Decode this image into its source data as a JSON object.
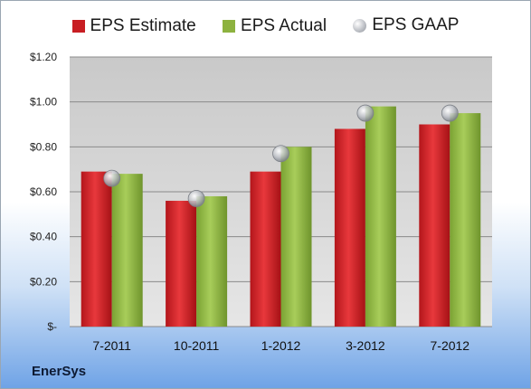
{
  "chart_data": {
    "type": "bar",
    "categories": [
      "7-2011",
      "10-2011",
      "1-2012",
      "3-2012",
      "7-2012"
    ],
    "series": [
      {
        "name": "EPS Estimate",
        "values": [
          0.69,
          0.56,
          0.69,
          0.88,
          0.9
        ],
        "color": "#c81e23"
      },
      {
        "name": "EPS Actual",
        "values": [
          0.68,
          0.58,
          0.8,
          0.98,
          0.95
        ],
        "color": "#8db23f"
      },
      {
        "name": "EPS GAAP",
        "values": [
          0.66,
          0.57,
          0.77,
          0.95,
          0.95
        ],
        "color": "#b9bcc2",
        "marker": "sphere"
      }
    ],
    "ylim": [
      0,
      1.2
    ],
    "yticks": [
      0,
      0.2,
      0.4,
      0.6,
      0.8,
      1.0,
      1.2
    ],
    "ytick_labels": [
      "$-",
      "$0.20",
      "$0.40",
      "$0.60",
      "$0.80",
      "$1.00",
      "$1.20"
    ],
    "grid": true,
    "legend": "top-center"
  },
  "company": "EnerSys"
}
